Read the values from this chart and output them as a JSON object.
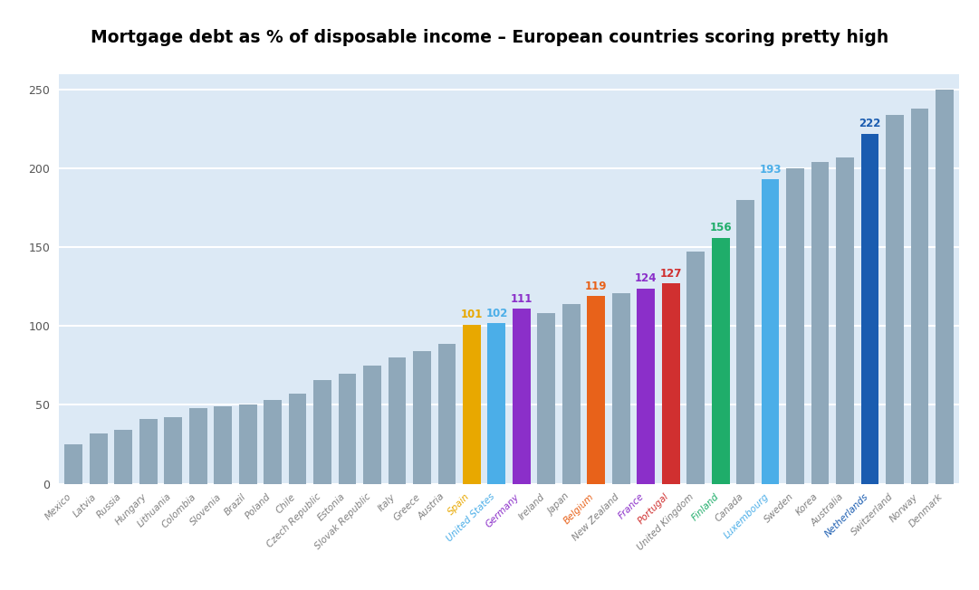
{
  "title": "Mortgage debt as % of disposable income – European countries scoring pretty high",
  "title_bg_color": "#F5A800",
  "title_text_color": "#000000",
  "background_color": "#FFFFFF",
  "plot_bg_color": "#DCE9F5",
  "ylim": [
    0,
    260
  ],
  "yticks": [
    0,
    50,
    100,
    150,
    200,
    250
  ],
  "categories": [
    "Mexico",
    "Latvia",
    "Russia",
    "Hungary",
    "Lithuania",
    "Colombia",
    "Slovenia",
    "Brazil",
    "Poland",
    "Chile",
    "Czech Republic",
    "Estonia",
    "Slovak Republic",
    "Italy",
    "Greece",
    "Austria",
    "Spain",
    "United States",
    "Germany",
    "Ireland",
    "Japan",
    "Belgium",
    "New Zealand",
    "France",
    "Portugal",
    "United Kingdom",
    "Finland",
    "Canada",
    "Luxembourg",
    "Sweden",
    "Korea",
    "Australia",
    "Netherlands",
    "Switzerland",
    "Norway",
    "Denmark"
  ],
  "values": [
    25,
    32,
    34,
    41,
    42,
    48,
    49,
    50,
    53,
    57,
    66,
    70,
    75,
    80,
    84,
    89,
    101,
    102,
    111,
    108,
    114,
    119,
    121,
    124,
    127,
    147,
    156,
    180,
    193,
    200,
    204,
    207,
    222,
    234,
    238,
    250
  ],
  "bar_colors": [
    "#8FA8BA",
    "#8FA8BA",
    "#8FA8BA",
    "#8FA8BA",
    "#8FA8BA",
    "#8FA8BA",
    "#8FA8BA",
    "#8FA8BA",
    "#8FA8BA",
    "#8FA8BA",
    "#8FA8BA",
    "#8FA8BA",
    "#8FA8BA",
    "#8FA8BA",
    "#8FA8BA",
    "#8FA8BA",
    "#E8A800",
    "#4BAEE8",
    "#8B2FC9",
    "#8FA8BA",
    "#8FA8BA",
    "#E8621A",
    "#8FA8BA",
    "#8B2FC9",
    "#D03030",
    "#8FA8BA",
    "#1FAD6A",
    "#8FA8BA",
    "#4BAEE8",
    "#8FA8BA",
    "#8FA8BA",
    "#8FA8BA",
    "#1A5CB0",
    "#8FA8BA",
    "#8FA8BA",
    "#8FA8BA"
  ],
  "label_colors": [
    null,
    null,
    null,
    null,
    null,
    null,
    null,
    null,
    null,
    null,
    null,
    null,
    null,
    null,
    null,
    null,
    "#E8A800",
    "#4BAEE8",
    "#8B2FC9",
    null,
    null,
    "#E8621A",
    null,
    "#8B2FC9",
    "#D03030",
    null,
    "#1FAD6A",
    null,
    "#4BAEE8",
    null,
    null,
    null,
    "#1A5CB0",
    null,
    null,
    null
  ],
  "tick_label_colors": [
    "#808080",
    "#808080",
    "#808080",
    "#808080",
    "#808080",
    "#808080",
    "#808080",
    "#808080",
    "#808080",
    "#808080",
    "#808080",
    "#808080",
    "#808080",
    "#808080",
    "#808080",
    "#808080",
    "#E8A800",
    "#4BAEE8",
    "#8B2FC9",
    "#808080",
    "#808080",
    "#E8621A",
    "#808080",
    "#8B2FC9",
    "#D03030",
    "#808080",
    "#1FAD6A",
    "#808080",
    "#4BAEE8",
    "#808080",
    "#808080",
    "#808080",
    "#1A5CB0",
    "#808080",
    "#808080",
    "#808080"
  ]
}
